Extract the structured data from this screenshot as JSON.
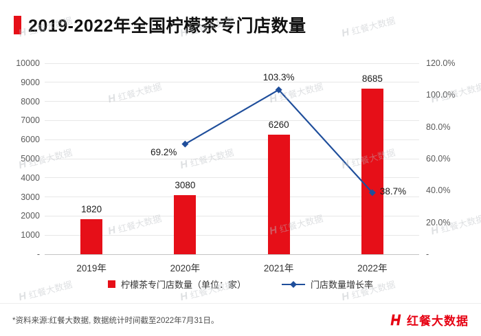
{
  "chart_data": {
    "type": "bar",
    "title": "2019-2022年全国柠檬茶专门店数量",
    "categories": [
      "2019年",
      "2020年",
      "2021年",
      "2022年"
    ],
    "series": [
      {
        "name": "柠檬茶专门店数量（单位：家）",
        "type": "bar",
        "axis": "left",
        "values": [
          1820,
          3080,
          6260,
          8685
        ],
        "labels": [
          "1820",
          "3080",
          "6260",
          "8685"
        ],
        "color": "#e60f18"
      },
      {
        "name": "门店数量增长率",
        "type": "line",
        "axis": "right",
        "values": [
          null,
          69.2,
          103.3,
          38.7
        ],
        "labels": [
          null,
          "69.2%",
          "103.3%",
          "38.7%"
        ],
        "label_positions": [
          "none",
          "left",
          "above",
          "right"
        ],
        "color": "#1f4e9b"
      }
    ],
    "left_axis": {
      "min": 0,
      "max": 10000,
      "step": 1000,
      "tick_labels": [
        "10000",
        "9000",
        "8000",
        "7000",
        "6000",
        "5000",
        "4000",
        "3000",
        "2000",
        "1000",
        "-"
      ]
    },
    "right_axis": {
      "min": 0,
      "max": 120,
      "step": 20,
      "tick_labels": [
        "120.0%",
        "100.0%",
        "80.0%",
        "60.0%",
        "40.0%",
        "20.0%",
        "-"
      ]
    },
    "grid": true,
    "legend_position": "bottom"
  },
  "footer": {
    "source_note": "*资料来源:红餐大数据, 数据统计时间截至2022年7月31日。",
    "brand": "红餐大数据"
  },
  "watermark": {
    "text": "红餐大数据"
  },
  "colors": {
    "bar_red": "#e60f18",
    "line_blue": "#1f4e9b",
    "brand_red": "#e60012"
  }
}
